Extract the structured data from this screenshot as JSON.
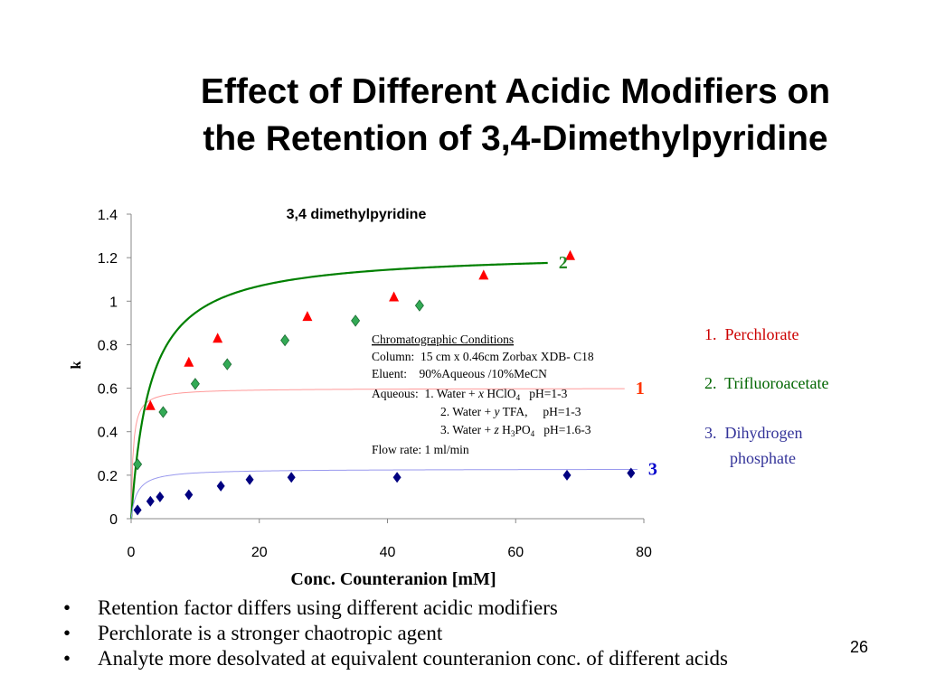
{
  "slide": {
    "title_line1": "Effect of Different Acidic Modifiers on",
    "title_line2": "the Retention of 3,4-Dimethylpyridine",
    "page_number": "26"
  },
  "bullets": [
    "Retention factor differs using different acidic modifiers",
    "Perchlorate is a stronger chaotropic agent",
    "Analyte more desolvated at equivalent counteranion conc. of different acids"
  ],
  "legend": {
    "item1": "1.  Perchlorate",
    "item2": "2.  Trifluoroacetate",
    "item3_line1": "3.  Dihydrogen",
    "item3_line2": "phosphate"
  },
  "conditions": {
    "heading": "Chromatographic Conditions",
    "column": "Column:  15 cm x 0.46cm Zorbax XDB- C18",
    "eluent": "Eluent:    90%Aqueous /10%MeCN",
    "aqueous1_prefix": "Aqueous:  1. Water + ",
    "aqueous1_var": "x",
    "aqueous1_compound": " HClO",
    "aqueous1_sub": "4",
    "aqueous1_ph": "   pH=1-3",
    "aqueous2_prefix": "2. Water + ",
    "aqueous2_var": "y",
    "aqueous2_compound": " TFA,     pH=1-3",
    "aqueous3_prefix": "3. Water + ",
    "aqueous3_var": "z",
    "aqueous3_c1": " H",
    "aqueous3_sub1": "3",
    "aqueous3_c2": "PO",
    "aqueous3_sub2": "4",
    "aqueous3_ph": "   pH=1.6-3",
    "flow": "Flow rate: 1 ml/min"
  },
  "chart_data": {
    "type": "scatter",
    "title": "3,4 dimethylpyridine",
    "xlabel": "Conc. Counteranion [mM]",
    "ylabel": "k",
    "xlim": [
      0,
      80
    ],
    "ylim": [
      0,
      1.4
    ],
    "x_ticks": [
      "0",
      "20",
      "40",
      "60",
      "80"
    ],
    "y_ticks": [
      "0",
      "0.2",
      "0.4",
      "0.6",
      "0.8",
      "1",
      "1.2",
      "1.4"
    ],
    "grid": false,
    "series": [
      {
        "name": "1",
        "marker": "triangle",
        "color": "#ff0000",
        "fit_color": "#ff9999",
        "points": [
          [
            3,
            0.52
          ],
          [
            9,
            0.72
          ],
          [
            13.5,
            0.83
          ],
          [
            27.5,
            0.93
          ],
          [
            41,
            1.02
          ],
          [
            55,
            1.12
          ],
          [
            68.5,
            1.21
          ]
        ],
        "fit": {
          "a": 0.6,
          "b": 0.3,
          "xmax": 77
        }
      },
      {
        "name": "2",
        "marker": "diamond",
        "color": "#33aa55",
        "fit_color": "#008000",
        "points": [
          [
            1,
            0.25
          ],
          [
            5,
            0.49
          ],
          [
            10,
            0.62
          ],
          [
            15,
            0.71
          ],
          [
            24,
            0.82
          ],
          [
            35,
            0.91
          ],
          [
            45,
            0.98
          ]
        ],
        "fit": {
          "a": 1.23,
          "b": 3.0,
          "xmax": 65
        }
      },
      {
        "name": "3",
        "marker": "diamond",
        "color": "#000080",
        "fit_color": "#9999ee",
        "points": [
          [
            1,
            0.04
          ],
          [
            3,
            0.08
          ],
          [
            4.5,
            0.1
          ],
          [
            9,
            0.11
          ],
          [
            14,
            0.15
          ],
          [
            18.5,
            0.18
          ],
          [
            25,
            0.19
          ],
          [
            41.5,
            0.19
          ],
          [
            68,
            0.2
          ],
          [
            78,
            0.21
          ]
        ],
        "fit": {
          "a": 0.229,
          "b": 0.9,
          "xmax": 79
        }
      }
    ]
  }
}
